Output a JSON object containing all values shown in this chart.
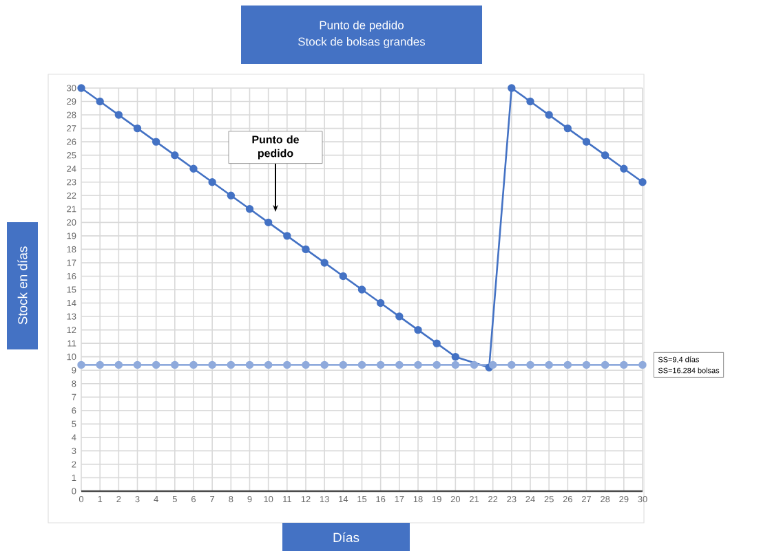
{
  "chart_data": {
    "type": "line",
    "title": "Punto de pedido",
    "subtitle": "Stock de bolsas grandes",
    "xlabel": "Días",
    "ylabel": "Stock en días",
    "series": [
      {
        "color": "#4472c4",
        "x": [
          0,
          1,
          2,
          3,
          4,
          5,
          6,
          7,
          8,
          9,
          10,
          11,
          12,
          13,
          14,
          15,
          16,
          17,
          18,
          19,
          20,
          21.8,
          23,
          24,
          25,
          26,
          27,
          28,
          29,
          30
        ],
        "values": [
          30,
          29,
          28,
          27,
          26,
          25,
          24,
          23,
          22,
          21,
          20,
          19,
          18,
          17,
          16,
          15,
          14,
          13,
          12,
          11,
          10,
          9.2,
          30,
          29,
          28,
          27,
          26,
          25,
          24,
          23
        ]
      },
      {
        "color": "#8faadc",
        "x": [
          0,
          1,
          2,
          3,
          4,
          5,
          6,
          7,
          8,
          9,
          10,
          11,
          12,
          13,
          14,
          15,
          16,
          17,
          18,
          19,
          20,
          21,
          22,
          23,
          24,
          25,
          26,
          27,
          28,
          29,
          30
        ],
        "values": [
          9.4,
          9.4,
          9.4,
          9.4,
          9.4,
          9.4,
          9.4,
          9.4,
          9.4,
          9.4,
          9.4,
          9.4,
          9.4,
          9.4,
          9.4,
          9.4,
          9.4,
          9.4,
          9.4,
          9.4,
          9.4,
          9.4,
          9.4,
          9.4,
          9.4,
          9.4,
          9.4,
          9.4,
          9.4,
          9.4,
          9.4
        ]
      }
    ],
    "annotations": [
      "**Punto de pedido**",
      "SS=9,4 días",
      "SS=16.284 bolsas"
    ],
    "xlim": [
      0,
      30
    ],
    "xticks": [
      0,
      1,
      2,
      3,
      4,
      5,
      6,
      7,
      8,
      9,
      10,
      11,
      12,
      13,
      14,
      15,
      16,
      17,
      18,
      19,
      20,
      21,
      22,
      23,
      24,
      25,
      26,
      27,
      28,
      29,
      30
    ],
    "ylim": [
      0,
      30
    ],
    "yticks": [
      0,
      1,
      2,
      3,
      4,
      5,
      6,
      7,
      8,
      9,
      10,
      11,
      12,
      13,
      14,
      15,
      16,
      17,
      18,
      19,
      20,
      21,
      22,
      23,
      24,
      25,
      26,
      27,
      28,
      29,
      30
    ],
    "grid": true,
    "marker": "circle",
    "line_style": "solid"
  }
}
